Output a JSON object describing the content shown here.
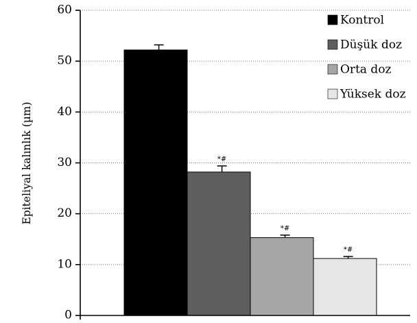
{
  "chart_data": {
    "type": "bar",
    "title": "",
    "xlabel": "",
    "ylabel": "Epiteliyal kalınlık (µm)",
    "ylim": [
      0,
      60
    ],
    "yticks": [
      0,
      10,
      20,
      30,
      40,
      50,
      60
    ],
    "grid": "horizontal dotted",
    "legend_position": "top-right",
    "categories": [
      "Kontrol",
      "Düşük doz",
      "Orta doz",
      "Yüksek doz"
    ],
    "values": [
      52.2,
      28.2,
      15.3,
      11.2
    ],
    "errors": [
      1.0,
      1.2,
      0.5,
      0.4
    ],
    "colors": [
      "#000000",
      "#5e5e5e",
      "#a6a6a6",
      "#e6e6e6"
    ],
    "annotations": [
      "",
      "*#",
      "*#",
      "*#"
    ]
  }
}
